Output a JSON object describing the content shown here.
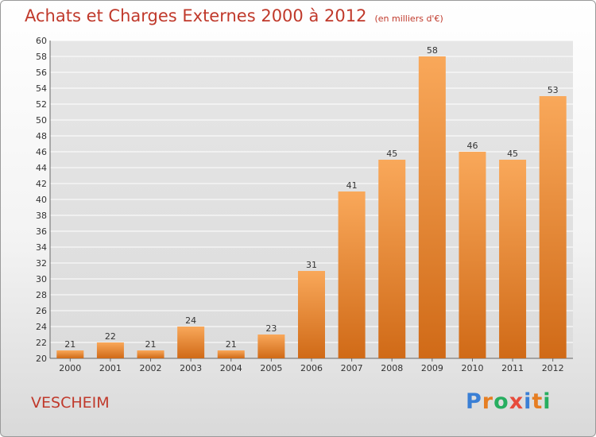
{
  "header": {
    "title": "Achats et Charges Externes 2000 à 2012",
    "unit": "(en milliers d'€)"
  },
  "footer": {
    "commune": "VESCHEIM",
    "logo_letters": [
      "P",
      "r",
      "o",
      "x",
      "i",
      "t",
      "i"
    ],
    "logo_colors": [
      "#3a7fd5",
      "#e67e22",
      "#27ae60",
      "#e74c3c",
      "#3a7fd5",
      "#e67e22",
      "#27ae60"
    ]
  },
  "colors": {
    "title": "#c0392b",
    "bar_light": "#f9a85a",
    "bar_dark": "#d06a17",
    "grid": "#ffffff",
    "axis_text": "#333333"
  },
  "chart_data": {
    "type": "bar",
    "title": "Achats et Charges Externes 2000 à 2012",
    "subtitle": "(en milliers d'€)",
    "categories": [
      "2000",
      "2001",
      "2002",
      "2003",
      "2004",
      "2005",
      "2006",
      "2007",
      "2008",
      "2009",
      "2010",
      "2011",
      "2012"
    ],
    "values": [
      21,
      22,
      21,
      24,
      21,
      23,
      31,
      41,
      45,
      58,
      46,
      45,
      53
    ],
    "ylim": [
      20,
      60
    ],
    "ytick_step": 2,
    "grid": true,
    "data_labels": true
  }
}
